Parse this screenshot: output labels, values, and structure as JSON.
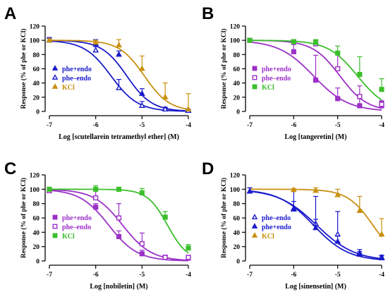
{
  "chart_data": [
    {
      "panel": "A",
      "type": "scatter",
      "xlabel": "Log [scutellarein tetramethyl ether] (M)",
      "ylabel": "Response (% of phe or KCl)",
      "xlim": [
        -7,
        -4
      ],
      "ylim": [
        0,
        120
      ],
      "xticks": [
        -7,
        -6,
        -5,
        -4
      ],
      "yticks": [
        0,
        20,
        40,
        60,
        80,
        100,
        120
      ],
      "legend": "bottom-left",
      "series": [
        {
          "name": "phe+endo",
          "color": "#1a1acc",
          "marker": "triangle",
          "filled": true,
          "x": [
            -7,
            -6,
            -5.5,
            -5,
            -4.5,
            -4
          ],
          "y": [
            100,
            95,
            80,
            25,
            3,
            1
          ],
          "err": [
            4,
            6,
            5,
            7,
            3,
            2
          ],
          "fit": {
            "top": 100,
            "bottom": 0,
            "logEC50": -5.33,
            "hill": 1.6
          }
        },
        {
          "name": "phe–endo",
          "color": "#1a1acc",
          "marker": "triangle",
          "filled": false,
          "x": [
            -7,
            -6,
            -5.5,
            -5,
            -4.5,
            -4
          ],
          "y": [
            100,
            86,
            33,
            8,
            3,
            1
          ],
          "err": [
            3,
            5,
            12,
            6,
            2,
            2
          ],
          "fit": {
            "top": 100,
            "bottom": 0,
            "logEC50": -5.67,
            "hill": 1.5
          }
        },
        {
          "name": "KCl",
          "color": "#c9900f",
          "marker": "triangle",
          "filled": true,
          "x": [
            -7,
            -6,
            -5.5,
            -5,
            -4.5,
            -4
          ],
          "y": [
            100,
            97,
            93,
            60,
            20,
            3
          ],
          "err": [
            2,
            3,
            8,
            18,
            20,
            22
          ],
          "fit": {
            "top": 100,
            "bottom": 0,
            "logEC50": -4.95,
            "hill": 1.6
          }
        }
      ]
    },
    {
      "panel": "B",
      "type": "scatter",
      "xlabel": "Log [tangeretin] (M)",
      "ylabel": "Response (% of phe or KCl)",
      "xlim": [
        -7,
        -4
      ],
      "ylim": [
        0,
        120
      ],
      "xticks": [
        -7,
        -6,
        -5,
        -4
      ],
      "yticks": [
        0,
        20,
        40,
        60,
        80,
        100,
        120
      ],
      "legend": "bottom-left",
      "series": [
        {
          "name": "phe+endo",
          "color": "#9b30c8",
          "marker": "square",
          "filled": true,
          "x": [
            -7,
            -6,
            -5.5,
            -5,
            -4.5,
            -4
          ],
          "y": [
            100,
            84,
            44,
            18,
            8,
            8
          ],
          "err": [
            2,
            10,
            35,
            15,
            10,
            6
          ],
          "fit": {
            "top": 100,
            "bottom": 0,
            "logEC50": -5.55,
            "hill": 1.1
          }
        },
        {
          "name": "phe–endo",
          "color": "#9b30c8",
          "marker": "square",
          "filled": false,
          "x": [
            -7,
            -6,
            -5.5,
            -5,
            -4.5,
            -4
          ],
          "y": [
            100,
            98,
            95,
            60,
            21,
            10
          ],
          "err": [
            2,
            3,
            5,
            22,
            15,
            5
          ],
          "fit": {
            "top": 100,
            "bottom": 0,
            "logEC50": -4.95,
            "hill": 1.4
          }
        },
        {
          "name": "KCl",
          "color": "#3bbf2b",
          "marker": "square",
          "filled": true,
          "x": [
            -7,
            -6,
            -5.5,
            -5,
            -4.5,
            -4
          ],
          "y": [
            100,
            98,
            97,
            82,
            52,
            31
          ],
          "err": [
            2,
            3,
            4,
            10,
            25,
            15
          ],
          "fit": {
            "top": 100,
            "bottom": 0,
            "logEC50": -4.55,
            "hill": 1.3
          }
        }
      ]
    },
    {
      "panel": "C",
      "type": "scatter",
      "xlabel": "Log [nobiletin] (M)",
      "ylabel": "Response (% of phe or KCl)",
      "xlim": [
        -7,
        -4
      ],
      "ylim": [
        0,
        120
      ],
      "xticks": [
        -7,
        -6,
        -5,
        -4
      ],
      "yticks": [
        0,
        20,
        40,
        60,
        80,
        100,
        120
      ],
      "legend": "bottom-left",
      "series": [
        {
          "name": "phe+endo",
          "color": "#9b30c8",
          "marker": "square",
          "filled": true,
          "x": [
            -7,
            -6,
            -5.5,
            -5,
            -4.5,
            -4
          ],
          "y": [
            98,
            75,
            34,
            10,
            5,
            4
          ],
          "err": [
            3,
            5,
            8,
            5,
            3,
            3
          ],
          "fit": {
            "top": 100,
            "bottom": 0,
            "logEC50": -5.72,
            "hill": 1.4
          }
        },
        {
          "name": "phe–endo",
          "color": "#9b30c8",
          "marker": "square",
          "filled": false,
          "x": [
            -7,
            -6,
            -5.5,
            -5,
            -4.5,
            -4
          ],
          "y": [
            98,
            88,
            60,
            24,
            5,
            5
          ],
          "err": [
            3,
            10,
            20,
            15,
            3,
            3
          ],
          "fit": {
            "top": 100,
            "bottom": 0,
            "logEC50": -5.42,
            "hill": 1.4
          }
        },
        {
          "name": "KCl",
          "color": "#3bbf2b",
          "marker": "square",
          "filled": true,
          "x": [
            -7,
            -6,
            -5.5,
            -5,
            -4.5,
            -4
          ],
          "y": [
            100,
            100,
            100,
            95,
            61,
            18
          ],
          "err": [
            2,
            5,
            2,
            6,
            8,
            5
          ],
          "fit": {
            "top": 100,
            "bottom": 0,
            "logEC50": -4.45,
            "hill": 2.0
          }
        }
      ]
    },
    {
      "panel": "D",
      "type": "scatter",
      "xlabel": "Log [sinensetin] (M)",
      "ylabel": "Response (% of phe or KCl)",
      "xlim": [
        -7,
        -4
      ],
      "ylim": [
        0,
        120
      ],
      "xticks": [
        -7,
        -6,
        -5,
        -4
      ],
      "yticks": [
        0,
        20,
        40,
        60,
        80,
        100,
        120
      ],
      "legend": "bottom-left",
      "series": [
        {
          "name": "phe–endo",
          "color": "#1a1acc",
          "marker": "triangle",
          "filled": false,
          "x": [
            -7,
            -6,
            -5.5,
            -5,
            -4.5,
            -4
          ],
          "y": [
            97,
            72,
            52,
            37,
            11,
            4
          ],
          "err": [
            5,
            25,
            38,
            32,
            5,
            3
          ],
          "fit": {
            "top": 100,
            "bottom": 0,
            "logEC50": -5.48,
            "hill": 1.0
          }
        },
        {
          "name": "phe+endo",
          "color": "#1a1acc",
          "marker": "triangle",
          "filled": true,
          "x": [
            -7,
            -6,
            -5.5,
            -5,
            -4.5,
            -4
          ],
          "y": [
            97,
            73,
            46,
            27,
            9,
            5
          ],
          "err": [
            5,
            10,
            12,
            8,
            4,
            3
          ],
          "fit": {
            "top": 100,
            "bottom": 0,
            "logEC50": -5.55,
            "hill": 1.1
          }
        },
        {
          "name": "KCl",
          "color": "#c9900f",
          "marker": "triangle",
          "filled": true,
          "x": [
            -6,
            -5.5,
            -5,
            -4.5,
            -4
          ],
          "y": [
            99,
            98,
            92,
            70,
            37
          ],
          "err": [
            2,
            4,
            8,
            20,
            22
          ],
          "fit": {
            "top": 100,
            "bottom": 0,
            "logEC50": -4.2,
            "hill": 1.5
          }
        }
      ]
    }
  ]
}
